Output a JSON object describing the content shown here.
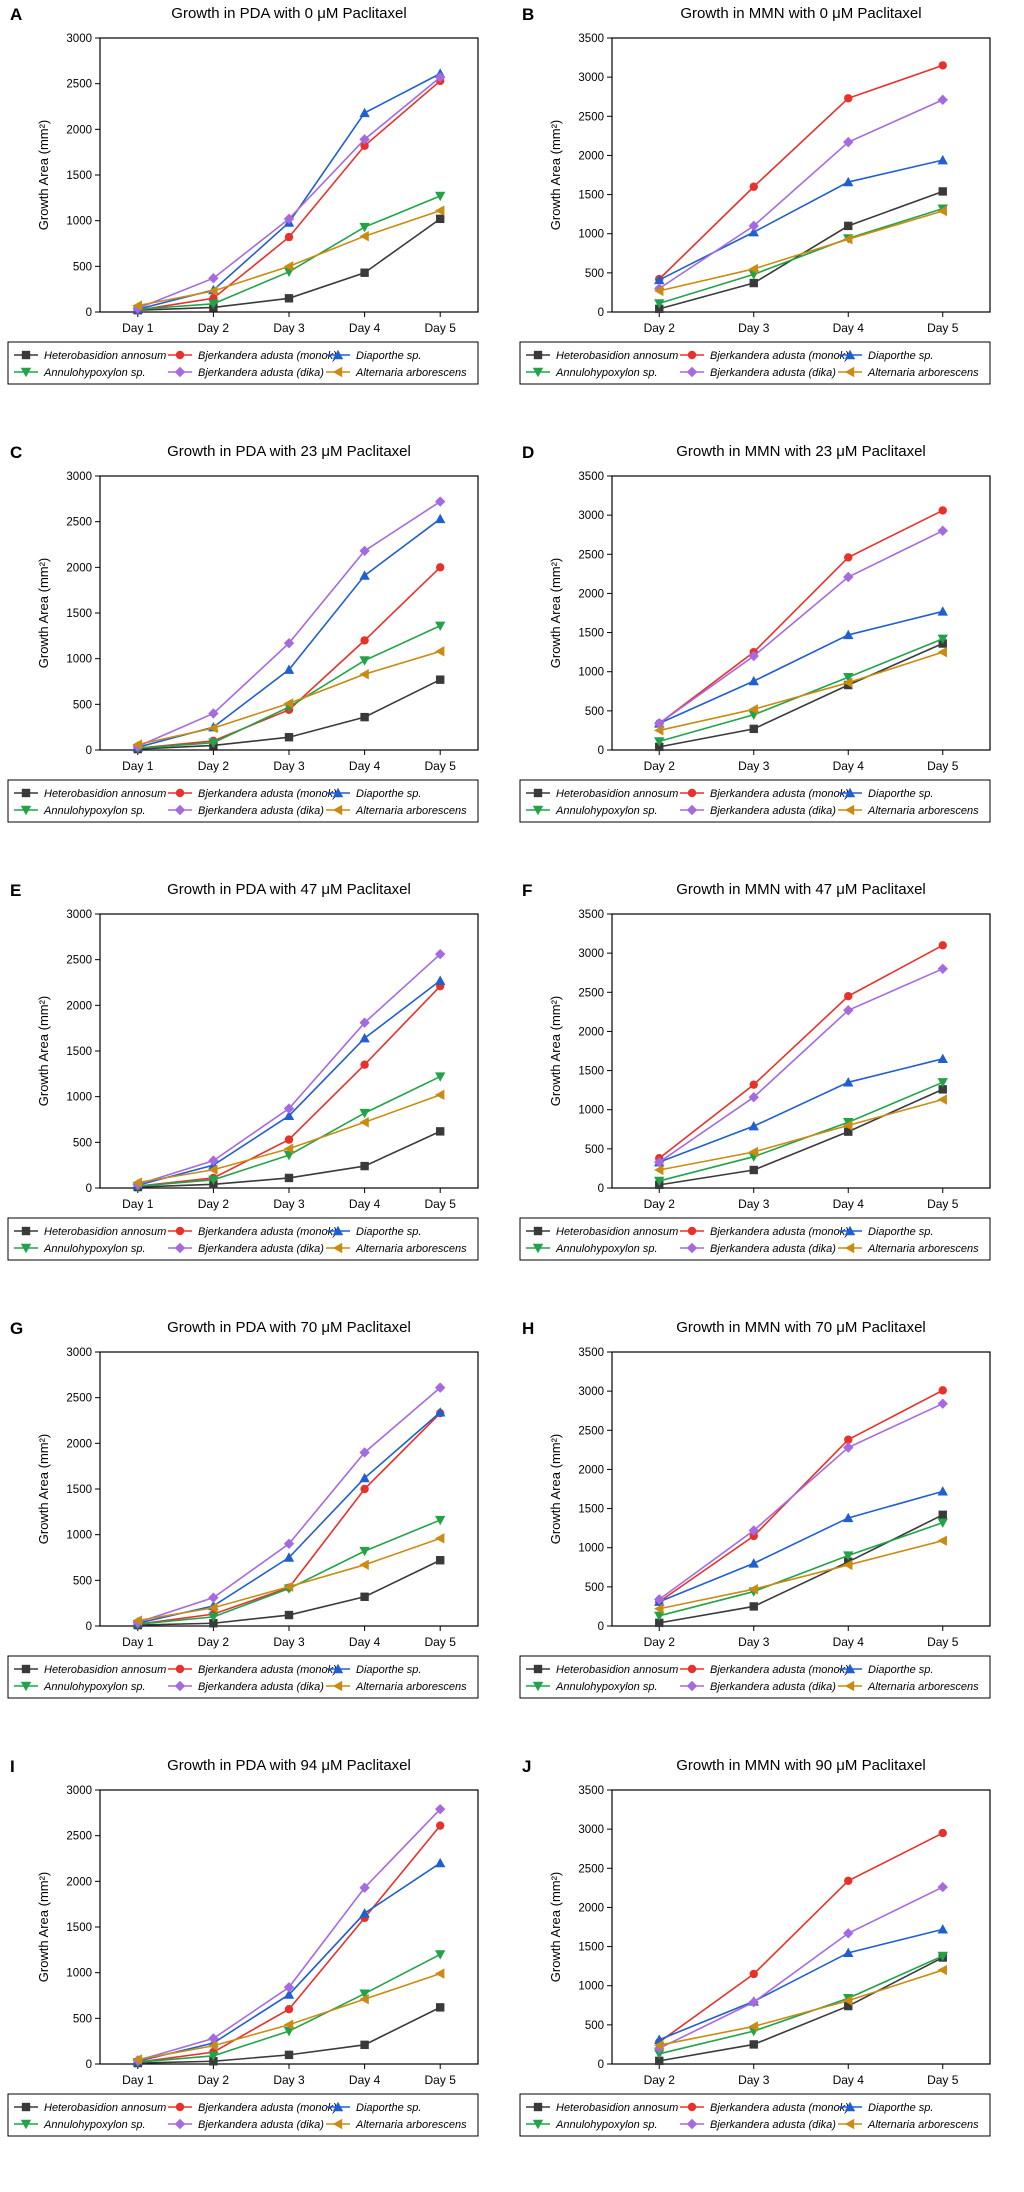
{
  "ylabel": "Growth Area (mm²)",
  "colors": {
    "Heterobasidion annosum": "#3a3a3a",
    "Bjerkandera adusta (monok)": "#e8312a",
    "Diaporthe sp.": "#1f5fcf",
    "Annulohypoxylon sp.": "#22a34a",
    "Bjerkandera adusta (dika)": "#a56ae0",
    "Alternaria arborescens": "#c98b12"
  },
  "markers": {
    "Heterobasidion annosum": "square",
    "Bjerkandera adusta (monok)": "circle",
    "Diaporthe sp.": "triangle-up",
    "Annulohypoxylon sp.": "triangle-down",
    "Bjerkandera adusta (dika)": "diamond",
    "Alternaria arborescens": "triangle-left"
  },
  "legend": [
    "Heterobasidion annosum",
    "Bjerkandera adusta (monok)",
    "Diaporthe sp.",
    "Annulohypoxylon sp.",
    "Bjerkandera adusta (dika)",
    "Alternaria arborescens"
  ],
  "chart_data": [
    {
      "panel": "A",
      "type": "line",
      "title": "Growth in PDA with 0 μM Paclitaxel",
      "categories": [
        "Day 1",
        "Day 2",
        "Day 3",
        "Day 4",
        "Day 5"
      ],
      "ylim": [
        0,
        3000
      ],
      "yticks": [
        0,
        500,
        1000,
        1500,
        2000,
        2500,
        3000
      ],
      "series": [
        {
          "name": "Heterobasidion annosum",
          "values": [
            20,
            50,
            150,
            430,
            1020
          ]
        },
        {
          "name": "Bjerkandera adusta (monok)",
          "values": [
            20,
            150,
            820,
            1820,
            2530
          ]
        },
        {
          "name": "Diaporthe sp.",
          "values": [
            30,
            240,
            980,
            2180,
            2610
          ]
        },
        {
          "name": "Annulohypoxylon sp.",
          "values": [
            30,
            90,
            440,
            930,
            1270
          ]
        },
        {
          "name": "Bjerkandera adusta (dika)",
          "values": [
            40,
            370,
            1020,
            1890,
            2570
          ]
        },
        {
          "name": "Alternaria arborescens",
          "values": [
            70,
            230,
            500,
            830,
            1110
          ]
        }
      ]
    },
    {
      "panel": "B",
      "type": "line",
      "title": "Growth in MMN with 0 μM Paclitaxel",
      "categories": [
        "Day 2",
        "Day 3",
        "Day 4",
        "Day 5"
      ],
      "ylim": [
        0,
        3500
      ],
      "yticks": [
        0,
        500,
        1000,
        1500,
        2000,
        2500,
        3000,
        3500
      ],
      "series": [
        {
          "name": "Heterobasidion annosum",
          "values": [
            40,
            370,
            1100,
            1540
          ]
        },
        {
          "name": "Bjerkandera adusta (monok)",
          "values": [
            420,
            1600,
            2730,
            3150
          ]
        },
        {
          "name": "Diaporthe sp.",
          "values": [
            410,
            1020,
            1660,
            1940
          ]
        },
        {
          "name": "Annulohypoxylon sp.",
          "values": [
            110,
            480,
            940,
            1320
          ]
        },
        {
          "name": "Bjerkandera adusta (dika)",
          "values": [
            300,
            1100,
            2170,
            2710
          ]
        },
        {
          "name": "Alternaria arborescens",
          "values": [
            270,
            550,
            930,
            1290
          ]
        }
      ]
    },
    {
      "panel": "C",
      "type": "line",
      "title": "Growth in PDA with 23 μM Paclitaxel",
      "categories": [
        "Day 1",
        "Day 2",
        "Day 3",
        "Day 4",
        "Day 5"
      ],
      "ylim": [
        0,
        3000
      ],
      "yticks": [
        0,
        500,
        1000,
        1500,
        2000,
        2500,
        3000
      ],
      "series": [
        {
          "name": "Heterobasidion annosum",
          "values": [
            10,
            50,
            140,
            360,
            770
          ]
        },
        {
          "name": "Bjerkandera adusta (monok)",
          "values": [
            20,
            100,
            440,
            1200,
            2000
          ]
        },
        {
          "name": "Diaporthe sp.",
          "values": [
            30,
            250,
            880,
            1910,
            2530
          ]
        },
        {
          "name": "Annulohypoxylon sp.",
          "values": [
            20,
            80,
            470,
            980,
            1360
          ]
        },
        {
          "name": "Bjerkandera adusta (dika)",
          "values": [
            40,
            400,
            1170,
            2180,
            2720
          ]
        },
        {
          "name": "Alternaria arborescens",
          "values": [
            60,
            240,
            510,
            830,
            1080
          ]
        }
      ]
    },
    {
      "panel": "D",
      "type": "line",
      "title": "Growth in MMN with 23 μM Paclitaxel",
      "categories": [
        "Day 2",
        "Day 3",
        "Day 4",
        "Day 5"
      ],
      "ylim": [
        0,
        3500
      ],
      "yticks": [
        0,
        500,
        1000,
        1500,
        2000,
        2500,
        3000,
        3500
      ],
      "series": [
        {
          "name": "Heterobasidion annosum",
          "values": [
            40,
            270,
            830,
            1360
          ]
        },
        {
          "name": "Bjerkandera adusta (monok)",
          "values": [
            340,
            1250,
            2460,
            3060
          ]
        },
        {
          "name": "Diaporthe sp.",
          "values": [
            340,
            880,
            1470,
            1770
          ]
        },
        {
          "name": "Annulohypoxylon sp.",
          "values": [
            110,
            450,
            930,
            1420
          ]
        },
        {
          "name": "Bjerkandera adusta (dika)",
          "values": [
            340,
            1200,
            2210,
            2800
          ]
        },
        {
          "name": "Alternaria arborescens",
          "values": [
            250,
            520,
            860,
            1250
          ]
        }
      ]
    },
    {
      "panel": "E",
      "type": "line",
      "title": "Growth in PDA with 47 μM Paclitaxel",
      "categories": [
        "Day 1",
        "Day 2",
        "Day 3",
        "Day 4",
        "Day 5"
      ],
      "ylim": [
        0,
        3000
      ],
      "yticks": [
        0,
        500,
        1000,
        1500,
        2000,
        2500,
        3000
      ],
      "series": [
        {
          "name": "Heterobasidion annosum",
          "values": [
            10,
            40,
            110,
            240,
            620
          ]
        },
        {
          "name": "Bjerkandera adusta (monok)",
          "values": [
            20,
            110,
            530,
            1350,
            2210
          ]
        },
        {
          "name": "Diaporthe sp.",
          "values": [
            30,
            250,
            790,
            1640,
            2270
          ]
        },
        {
          "name": "Annulohypoxylon sp.",
          "values": [
            20,
            90,
            360,
            820,
            1220
          ]
        },
        {
          "name": "Bjerkandera adusta (dika)",
          "values": [
            40,
            300,
            870,
            1810,
            2560
          ]
        },
        {
          "name": "Alternaria arborescens",
          "values": [
            60,
            200,
            430,
            720,
            1020
          ]
        }
      ]
    },
    {
      "panel": "F",
      "type": "line",
      "title": "Growth in MMN with 47 μM Paclitaxel",
      "categories": [
        "Day 2",
        "Day 3",
        "Day 4",
        "Day 5"
      ],
      "ylim": [
        0,
        3500
      ],
      "yticks": [
        0,
        500,
        1000,
        1500,
        2000,
        2500,
        3000,
        3500
      ],
      "series": [
        {
          "name": "Heterobasidion annosum",
          "values": [
            40,
            230,
            720,
            1260
          ]
        },
        {
          "name": "Bjerkandera adusta (monok)",
          "values": [
            380,
            1320,
            2450,
            3100
          ]
        },
        {
          "name": "Diaporthe sp.",
          "values": [
            330,
            790,
            1350,
            1650
          ]
        },
        {
          "name": "Annulohypoxylon sp.",
          "values": [
            90,
            400,
            840,
            1350
          ]
        },
        {
          "name": "Bjerkandera adusta (dika)",
          "values": [
            330,
            1160,
            2270,
            2800
          ]
        },
        {
          "name": "Alternaria arborescens",
          "values": [
            230,
            460,
            800,
            1130
          ]
        }
      ]
    },
    {
      "panel": "G",
      "type": "line",
      "title": "Growth in PDA with 70 μM Paclitaxel",
      "categories": [
        "Day 1",
        "Day 2",
        "Day 3",
        "Day 4",
        "Day 5"
      ],
      "ylim": [
        0,
        3000
      ],
      "yticks": [
        0,
        500,
        1000,
        1500,
        2000,
        2500,
        3000
      ],
      "series": [
        {
          "name": "Heterobasidion annosum",
          "values": [
            10,
            30,
            120,
            320,
            720
          ]
        },
        {
          "name": "Bjerkandera adusta (monok)",
          "values": [
            20,
            130,
            420,
            1500,
            2330
          ]
        },
        {
          "name": "Diaporthe sp.",
          "values": [
            30,
            220,
            750,
            1620,
            2340
          ]
        },
        {
          "name": "Annulohypoxylon sp.",
          "values": [
            20,
            100,
            410,
            820,
            1160
          ]
        },
        {
          "name": "Bjerkandera adusta (dika)",
          "values": [
            40,
            310,
            900,
            1900,
            2610
          ]
        },
        {
          "name": "Alternaria arborescens",
          "values": [
            60,
            200,
            430,
            670,
            960
          ]
        }
      ]
    },
    {
      "panel": "H",
      "type": "line",
      "title": "Growth in MMN with 70 μM Paclitaxel",
      "categories": [
        "Day 2",
        "Day 3",
        "Day 4",
        "Day 5"
      ],
      "ylim": [
        0,
        3500
      ],
      "yticks": [
        0,
        500,
        1000,
        1500,
        2000,
        2500,
        3000,
        3500
      ],
      "series": [
        {
          "name": "Heterobasidion annosum",
          "values": [
            40,
            250,
            820,
            1420
          ]
        },
        {
          "name": "Bjerkandera adusta (monok)",
          "values": [
            310,
            1150,
            2380,
            3010
          ]
        },
        {
          "name": "Diaporthe sp.",
          "values": [
            310,
            800,
            1380,
            1720
          ]
        },
        {
          "name": "Annulohypoxylon sp.",
          "values": [
            130,
            440,
            900,
            1320
          ]
        },
        {
          "name": "Bjerkandera adusta (dika)",
          "values": [
            340,
            1220,
            2280,
            2840
          ]
        },
        {
          "name": "Alternaria arborescens",
          "values": [
            220,
            470,
            780,
            1090
          ]
        }
      ]
    },
    {
      "panel": "I",
      "type": "line",
      "title": "Growth in PDA with 94 μM Paclitaxel",
      "categories": [
        "Day 1",
        "Day 2",
        "Day 3",
        "Day 4",
        "Day 5"
      ],
      "ylim": [
        0,
        3000
      ],
      "yticks": [
        0,
        500,
        1000,
        1500,
        2000,
        2500,
        3000
      ],
      "series": [
        {
          "name": "Heterobasidion annosum",
          "values": [
            10,
            30,
            100,
            210,
            620
          ]
        },
        {
          "name": "Bjerkandera adusta (monok)",
          "values": [
            20,
            130,
            600,
            1600,
            2610
          ]
        },
        {
          "name": "Diaporthe sp.",
          "values": [
            30,
            230,
            760,
            1650,
            2200
          ]
        },
        {
          "name": "Annulohypoxylon sp.",
          "values": [
            20,
            90,
            360,
            770,
            1200
          ]
        },
        {
          "name": "Bjerkandera adusta (dika)",
          "values": [
            40,
            280,
            840,
            1930,
            2790
          ]
        },
        {
          "name": "Alternaria arborescens",
          "values": [
            50,
            200,
            430,
            710,
            990
          ]
        }
      ]
    },
    {
      "panel": "J",
      "type": "line",
      "title": "Growth in MMN with 90 μM Paclitaxel",
      "categories": [
        "Day 2",
        "Day 3",
        "Day 4",
        "Day 5"
      ],
      "ylim": [
        0,
        3500
      ],
      "yticks": [
        0,
        500,
        1000,
        1500,
        2000,
        2500,
        3000,
        3500
      ],
      "series": [
        {
          "name": "Heterobasidion annosum",
          "values": [
            40,
            250,
            740,
            1360
          ]
        },
        {
          "name": "Bjerkandera adusta (monok)",
          "values": [
            280,
            1150,
            2340,
            2950
          ]
        },
        {
          "name": "Diaporthe sp.",
          "values": [
            310,
            800,
            1420,
            1720
          ]
        },
        {
          "name": "Annulohypoxylon sp.",
          "values": [
            130,
            420,
            840,
            1380
          ]
        },
        {
          "name": "Bjerkandera adusta (dika)",
          "values": [
            200,
            790,
            1670,
            2260
          ]
        },
        {
          "name": "Alternaria arborescens",
          "values": [
            240,
            480,
            810,
            1200
          ]
        }
      ]
    }
  ]
}
